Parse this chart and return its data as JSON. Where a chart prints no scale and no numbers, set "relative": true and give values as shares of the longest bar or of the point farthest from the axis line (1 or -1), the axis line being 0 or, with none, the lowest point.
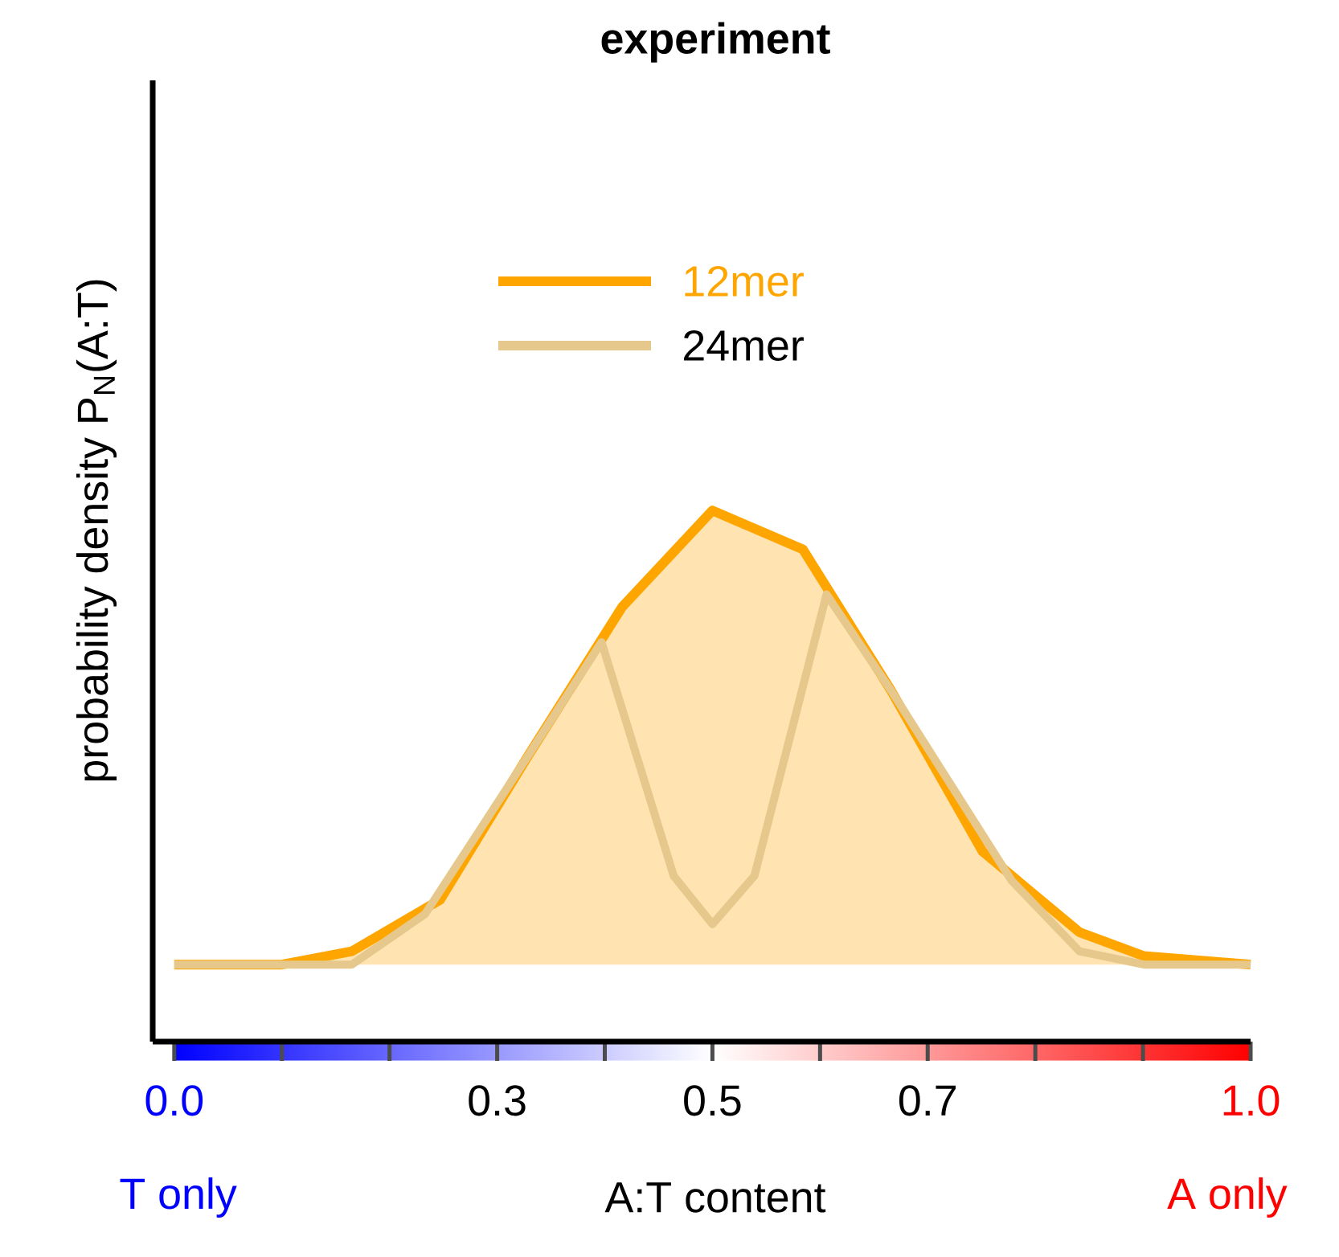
{
  "chart_data": {
    "type": "line",
    "title": "experiment",
    "ylabel": "probability density P$_{N}$(A:T)",
    "xlabel": "A:T content",
    "relative": true,
    "xlim": [
      -0.02,
      1
    ],
    "xticks": [
      {
        "value": 0,
        "label": "0.0"
      },
      {
        "value": 0.1,
        "label": null
      },
      {
        "value": 0.2,
        "label": null
      },
      {
        "value": 0.3,
        "label": "0.3"
      },
      {
        "value": 0.4,
        "label": null
      },
      {
        "value": 0.5,
        "label": "0.5"
      },
      {
        "value": 0.6,
        "label": null
      },
      {
        "value": 0.7,
        "label": "0.7"
      },
      {
        "value": 0.8,
        "label": null
      },
      {
        "value": 0.9,
        "label": null
      },
      {
        "value": 1.0,
        "label": "1.0"
      }
    ],
    "annotations": [
      "T only",
      "A only"
    ],
    "legend": "top",
    "series": [
      {
        "name": "12mer",
        "type": "area",
        "color": "#ffa500",
        "x": [
          0,
          0.1,
          0.165,
          0.247,
          0.329,
          0.416,
          0.5,
          0.584,
          0.666,
          0.751,
          0.841,
          0.901,
          1.0
        ],
        "values": [
          0.145,
          0.145,
          0.17,
          0.267,
          0.539,
          0.818,
          1,
          0.927,
          0.661,
          0.358,
          0.206,
          0.161,
          0.145
        ]
      },
      {
        "name": "24mer",
        "color": "#e6c88c",
        "x": [
          0,
          0.165,
          0.233,
          0.329,
          0.397,
          0.464,
          0.5,
          0.539,
          0.606,
          0.666,
          0.778,
          0.841,
          0.901,
          1.0
        ],
        "values": [
          0.145,
          0.145,
          0.24,
          0.539,
          0.752,
          0.312,
          0.221,
          0.312,
          0.842,
          0.661,
          0.303,
          0.17,
          0.145,
          0.145
        ]
      }
    ]
  }
}
